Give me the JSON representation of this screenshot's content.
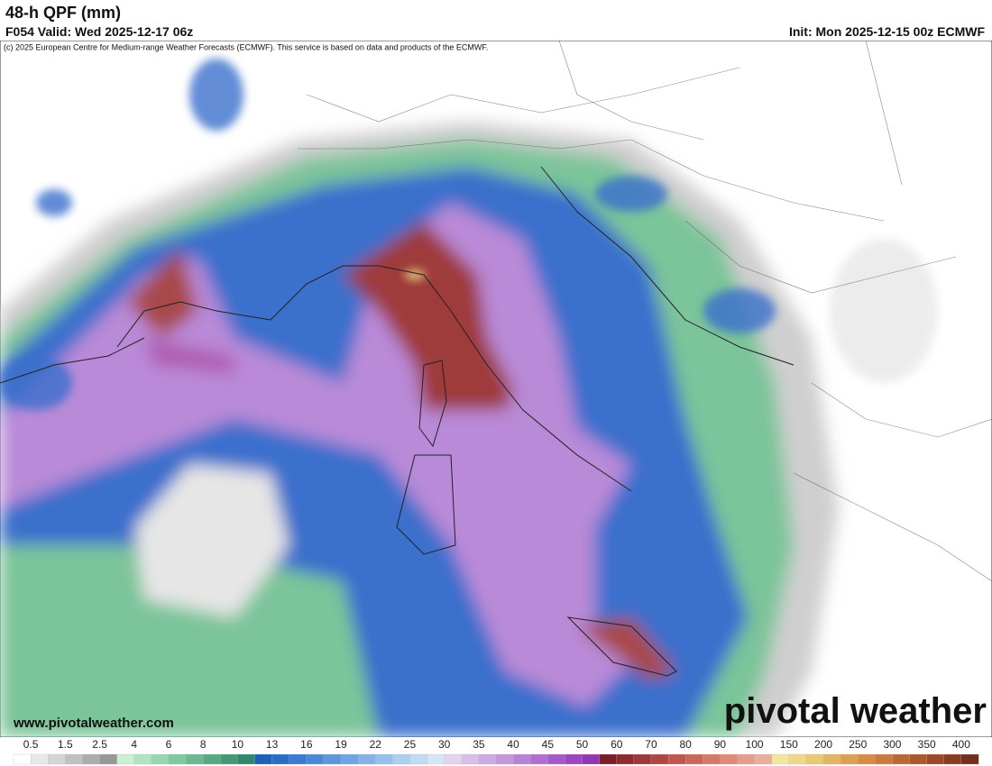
{
  "header": {
    "title": "48-h QPF (mm)",
    "valid": "F054 Valid: Wed 2025-12-17 06z",
    "init": "Init: Mon 2025-12-15 00z ECMWF"
  },
  "copyright": "(c) 2025 European Centre for Medium-range Weather Forecasts (ECMWF). This service is based on data and products of the ECMWF.",
  "watermark": {
    "url": "www.pivotalweather.com",
    "brand": "pivotal weather"
  },
  "legend": {
    "labels": [
      "0.5",
      "1.5",
      "2.5",
      "4",
      "6",
      "8",
      "10",
      "13",
      "16",
      "19",
      "22",
      "25",
      "30",
      "35",
      "40",
      "45",
      "50",
      "60",
      "70",
      "80",
      "90",
      "100",
      "150",
      "200",
      "250",
      "300",
      "350",
      "400"
    ],
    "colors": [
      "#ffffff",
      "#e8e8e8",
      "#d4d4d4",
      "#c0c0c0",
      "#acacac",
      "#989898",
      "#c8f0d2",
      "#b0e4c0",
      "#98d6ae",
      "#80c89e",
      "#6cb890",
      "#58a884",
      "#449878",
      "#30886c",
      "#1e5fb8",
      "#2a6cc6",
      "#3a7ad0",
      "#4c88d8",
      "#5e96de",
      "#70a4e4",
      "#84b2e8",
      "#98c0ec",
      "#acceef",
      "#c0dcf2",
      "#d4e8f4",
      "#e2d4ee",
      "#d8bfe8",
      "#ceaae2",
      "#c496dc",
      "#ba82d6",
      "#b06ed0",
      "#a65ac8",
      "#9c46c0",
      "#9236b6",
      "#7a1e2a",
      "#8c2a30",
      "#9e3838",
      "#b04642",
      "#c0564e",
      "#cc665a",
      "#d67868",
      "#de8a78",
      "#e69c8a",
      "#ecae9c",
      "#f2e69c",
      "#eed888",
      "#eac874",
      "#e4b460",
      "#dea050",
      "#d68c44",
      "#cc7a3a",
      "#bc6832",
      "#ac582c",
      "#9a4a26",
      "#883c20",
      "#72301a"
    ]
  }
}
